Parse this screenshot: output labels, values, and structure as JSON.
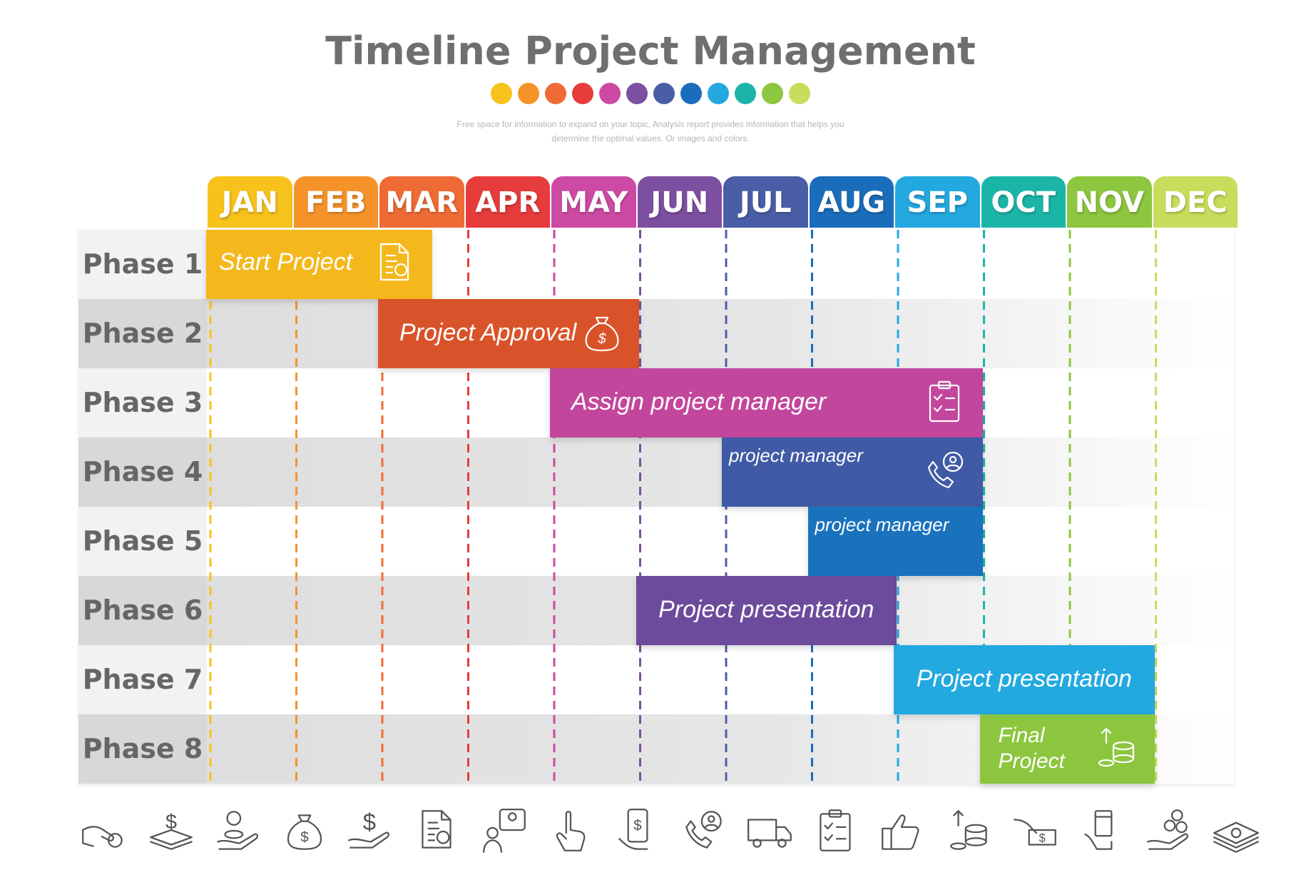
{
  "header": {
    "title": "Timeline Project Management",
    "subtitle_line1": "Free space for information to expand on your topic, Analysis report provides information that helps you",
    "subtitle_line2": "determine the optimal values. Or images and colors.",
    "dot_colors": [
      "#f7c21c",
      "#f5932a",
      "#ef6b36",
      "#e63c3b",
      "#cc4aa3",
      "#7d4fa1",
      "#4a5ea8",
      "#1a6dba",
      "#24a8e0",
      "#1bb5a8",
      "#8dc63f",
      "#c9dc5b"
    ]
  },
  "chart_data": {
    "type": "gantt",
    "months": [
      {
        "label": "JAN",
        "color": "#f7c21c"
      },
      {
        "label": "FEB",
        "color": "#f5932a"
      },
      {
        "label": "MAR",
        "color": "#ef6b36"
      },
      {
        "label": "APR",
        "color": "#e63c3b"
      },
      {
        "label": "MAY",
        "color": "#cc4aa3"
      },
      {
        "label": "JUN",
        "color": "#7d4fa1"
      },
      {
        "label": "JUL",
        "color": "#4a5ea8"
      },
      {
        "label": "AUG",
        "color": "#1a6dba"
      },
      {
        "label": "SEP",
        "color": "#24a8e0"
      },
      {
        "label": "OCT",
        "color": "#1bb5a8"
      },
      {
        "label": "NOV",
        "color": "#8dc63f"
      },
      {
        "label": "DEC",
        "color": "#c9dc5b"
      }
    ],
    "phases": [
      "Phase 1",
      "Phase 2",
      "Phase 3",
      "Phase 4",
      "Phase 5",
      "Phase 6",
      "Phase 7",
      "Phase 8"
    ],
    "tasks": [
      {
        "phase": 1,
        "start_month": 1,
        "end_month": 2.7,
        "label": "Start  Project",
        "color": "#f4b81c",
        "icon": "document-gear-icon"
      },
      {
        "phase": 2,
        "start_month": 3,
        "end_month": 5.1,
        "label": "Project  Approval",
        "color": "#d9532a",
        "icon": "money-bag-icon"
      },
      {
        "phase": 3,
        "start_month": 5,
        "end_month": 9.1,
        "label": "Assign project manager",
        "color": "#c2479c",
        "icon": "clipboard-checklist-icon"
      },
      {
        "phase": 4,
        "start_month": 7,
        "end_month": 9.1,
        "label": "project manager",
        "color": "#405aa5",
        "icon": "phone-support-icon"
      },
      {
        "phase": 5,
        "start_month": 8,
        "end_month": 9.1,
        "label": "project manager",
        "color": "#1a72bc",
        "icon": ""
      },
      {
        "phase": 6,
        "start_month": 6,
        "end_month": 8.1,
        "label": "Project presentation",
        "color": "#6c4a9c",
        "icon": ""
      },
      {
        "phase": 7,
        "start_month": 9,
        "end_month": 11.1,
        "label": "Project presentation",
        "color": "#22a9e0",
        "icon": ""
      },
      {
        "phase": 8,
        "start_month": 10,
        "end_month": 11.1,
        "label": "Final Project",
        "color": "#8cc63f",
        "icon": "coins-growth-icon"
      }
    ]
  },
  "footer_icons": [
    "hand-coin-icon",
    "money-stack-icon",
    "coin-hand-icon",
    "money-bag-icon",
    "dollar-hand-icon",
    "document-gear-icon",
    "user-chat-icon",
    "pointer-hand-icon",
    "mobile-payment-icon",
    "phone-support-icon",
    "delivery-truck-icon",
    "clipboard-checklist-icon",
    "thumbs-up-icon",
    "coins-growth-icon",
    "hand-cash-icon",
    "card-payment-icon",
    "hand-coins-icon",
    "cash-bundle-icon"
  ]
}
